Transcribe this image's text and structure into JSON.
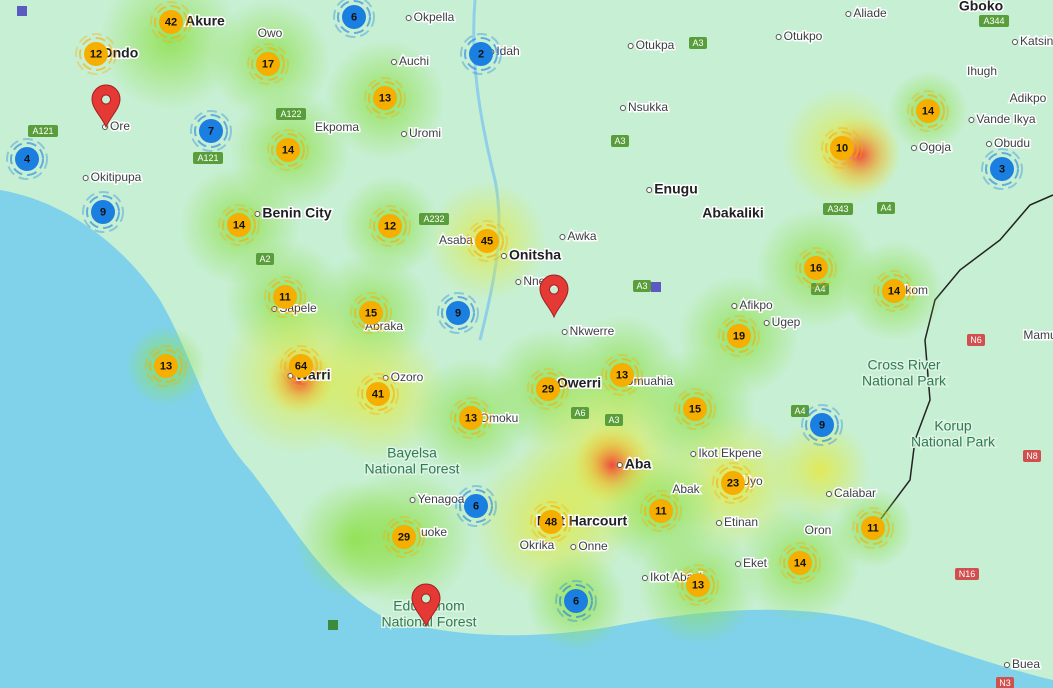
{
  "clusters": [
    {
      "count": 42,
      "color": "#f6ae00"
    },
    {
      "count": 6,
      "color": "#1a7fe0"
    },
    {
      "count": 12,
      "color": "#f6ae00"
    },
    {
      "count": 17,
      "color": "#f6ae00"
    },
    {
      "count": 2,
      "color": "#1a7fe0"
    },
    {
      "count": 13,
      "color": "#f6ae00"
    },
    {
      "count": 7,
      "color": "#1a7fe0"
    },
    {
      "count": 14,
      "color": "#f6ae00"
    },
    {
      "count": 4,
      "color": "#1a7fe0"
    },
    {
      "count": 9,
      "color": "#1a7fe0"
    },
    {
      "count": 14,
      "color": "#f6ae00"
    },
    {
      "count": 12,
      "color": "#f6ae00"
    },
    {
      "count": 45,
      "color": "#f6ae00"
    },
    {
      "count": 10,
      "color": "#f6ae00"
    },
    {
      "count": 14,
      "color": "#f6ae00"
    },
    {
      "count": 3,
      "color": "#1a7fe0"
    },
    {
      "count": 16,
      "color": "#f6ae00"
    },
    {
      "count": 14,
      "color": "#f6ae00"
    },
    {
      "count": 11,
      "color": "#f6ae00"
    },
    {
      "count": 15,
      "color": "#f6ae00"
    },
    {
      "count": 9,
      "color": "#1a7fe0"
    },
    {
      "count": 19,
      "color": "#f6ae00"
    },
    {
      "count": 13,
      "color": "#f6ae00"
    },
    {
      "count": 64,
      "color": "#f6ae00"
    },
    {
      "count": 41,
      "color": "#f6ae00"
    },
    {
      "count": 29,
      "color": "#f6ae00"
    },
    {
      "count": 13,
      "color": "#f6ae00"
    },
    {
      "count": 13,
      "color": "#f6ae00"
    },
    {
      "count": 15,
      "color": "#f6ae00"
    },
    {
      "count": 9,
      "color": "#1a7fe0"
    },
    {
      "count": 23,
      "color": "#f6ae00"
    },
    {
      "count": 6,
      "color": "#1a7fe0"
    },
    {
      "count": 48,
      "color": "#f6ae00"
    },
    {
      "count": 11,
      "color": "#f6ae00"
    },
    {
      "count": 11,
      "color": "#f6ae00"
    },
    {
      "count": 29,
      "color": "#f6ae00"
    },
    {
      "count": 14,
      "color": "#f6ae00"
    },
    {
      "count": 13,
      "color": "#f6ae00"
    },
    {
      "count": 6,
      "color": "#1a7fe0"
    }
  ],
  "places": [
    "Gboko",
    "Aliade",
    "Okpella",
    "Katsina",
    "Otukpa",
    "Otukpo",
    "Idah",
    "Ihugh",
    "Nsukka",
    "Adikpo",
    "Vande Ikya",
    "Uromi",
    "Ekpoma",
    "Ore",
    "Ogoja",
    "Obudu",
    "Okitipupa",
    "Enugu",
    "Abakaliki",
    "Benin City",
    "Awka",
    "Asaba",
    "Onitsha",
    "Nnewi",
    "Nkwerre",
    "Afikpo",
    "Ugep",
    "Sapele",
    "Abraka",
    "Owerri",
    "Umuahia",
    "Warri",
    "Ozoro",
    "Mamu",
    "Omoku",
    "Ikot Ekpene",
    "Aba",
    "Abak",
    "Uyo",
    "Calabar",
    "Yenagoa",
    "Port Harcourt",
    "Etinan",
    "Oron",
    "Okrika",
    "Onne",
    "Eket",
    "Ikot Abasi",
    "uoke",
    "Ondo",
    "Akure",
    "Owo",
    "Auchi",
    "Ikom",
    "Buea"
  ],
  "parks": [
    [
      "Cross River",
      "National Park"
    ],
    [
      "Korup",
      "National Park"
    ],
    [
      "Bayelsa",
      "National Forest"
    ],
    [
      "Edumanom",
      "National Forest"
    ]
  ],
  "roads": [
    "A121",
    "A121",
    "A122",
    "A3",
    "A3",
    "A344",
    "A232",
    "A2",
    "A3",
    "A4",
    "A343",
    "A4",
    "A6",
    "A3",
    "A4",
    "N6",
    "N8",
    "N16",
    "N3"
  ]
}
